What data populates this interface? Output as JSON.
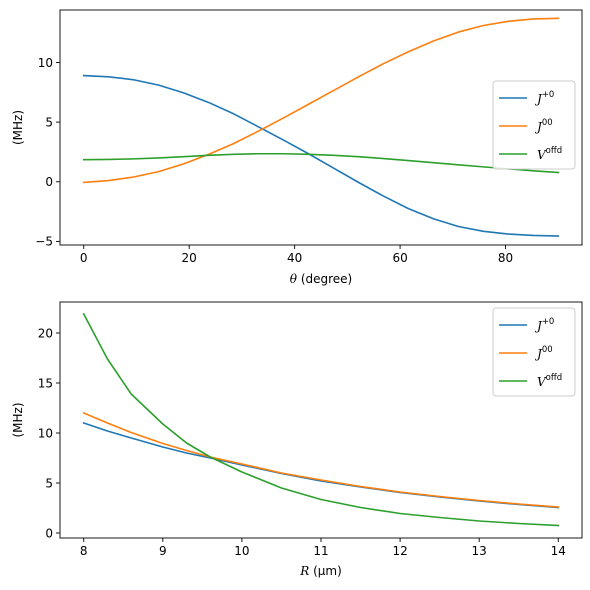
{
  "chart_data": [
    {
      "type": "line",
      "title": "",
      "xlabel_symbol": "θ",
      "xlabel_unit": "(degree)",
      "ylabel": "(MHz)",
      "xlim": [
        -4.5,
        94.5
      ],
      "ylim": [
        -5.3,
        14.4
      ],
      "xticks": [
        0,
        20,
        40,
        60,
        80
      ],
      "yticks": [
        -5,
        0,
        5,
        10
      ],
      "grid": false,
      "legend_position": "center-right",
      "x": [
        0,
        4.74,
        9.47,
        14.21,
        18.95,
        23.68,
        28.42,
        33.16,
        37.89,
        42.63,
        47.37,
        52.11,
        56.84,
        61.58,
        66.32,
        71.05,
        75.79,
        80.53,
        85.26,
        90
      ],
      "series": [
        {
          "name_base": "J",
          "name_sup": "+0",
          "color": "#1f77b4",
          "values": [
            8.9,
            8.8,
            8.55,
            8.1,
            7.45,
            6.65,
            5.7,
            4.6,
            3.5,
            2.35,
            1.15,
            -0.05,
            -1.2,
            -2.25,
            -3.1,
            -3.75,
            -4.15,
            -4.38,
            -4.5,
            -4.55
          ]
        },
        {
          "name_base": "J",
          "name_sup": "00",
          "color": "#ff7f0e",
          "values": [
            -0.05,
            0.1,
            0.4,
            0.85,
            1.5,
            2.3,
            3.2,
            4.25,
            5.35,
            6.5,
            7.65,
            8.8,
            9.9,
            10.9,
            11.8,
            12.55,
            13.1,
            13.45,
            13.65,
            13.7
          ]
        },
        {
          "name_base": "V",
          "name_sup": "offd",
          "color": "#2ca02c",
          "values": [
            1.85,
            1.87,
            1.92,
            2.0,
            2.1,
            2.22,
            2.3,
            2.35,
            2.35,
            2.3,
            2.22,
            2.1,
            1.95,
            1.78,
            1.6,
            1.42,
            1.25,
            1.08,
            0.92,
            0.78
          ]
        }
      ]
    },
    {
      "type": "line",
      "title": "",
      "xlabel_symbol": "R",
      "xlabel_unit": "(μm)",
      "ylabel": "(MHz)",
      "xlim": [
        7.7,
        14.3
      ],
      "ylim": [
        -0.5,
        23.1
      ],
      "xticks": [
        8,
        9,
        10,
        11,
        12,
        13,
        14
      ],
      "yticks": [
        0,
        5,
        10,
        15,
        20
      ],
      "grid": false,
      "legend_position": "top-right",
      "x": [
        8.0,
        8.3,
        8.6,
        9.0,
        9.3,
        9.6,
        10.0,
        10.5,
        11.0,
        11.5,
        12.0,
        12.5,
        13.0,
        13.5,
        14.0
      ],
      "series": [
        {
          "name_base": "J",
          "name_sup": "+0",
          "color": "#1f77b4",
          "values": [
            11.0,
            10.2,
            9.5,
            8.6,
            8.0,
            7.5,
            6.8,
            5.95,
            5.2,
            4.6,
            4.05,
            3.6,
            3.2,
            2.85,
            2.55
          ]
        },
        {
          "name_base": "J",
          "name_sup": "00",
          "color": "#ff7f0e",
          "values": [
            12.0,
            11.0,
            10.05,
            8.95,
            8.25,
            7.6,
            6.9,
            6.0,
            5.3,
            4.65,
            4.1,
            3.65,
            3.25,
            2.9,
            2.6
          ]
        },
        {
          "name_base": "V",
          "name_sup": "offd",
          "color": "#2ca02c",
          "values": [
            21.9,
            17.4,
            13.9,
            10.9,
            9.0,
            7.6,
            6.1,
            4.5,
            3.35,
            2.55,
            1.95,
            1.55,
            1.2,
            0.95,
            0.75
          ]
        }
      ]
    }
  ]
}
